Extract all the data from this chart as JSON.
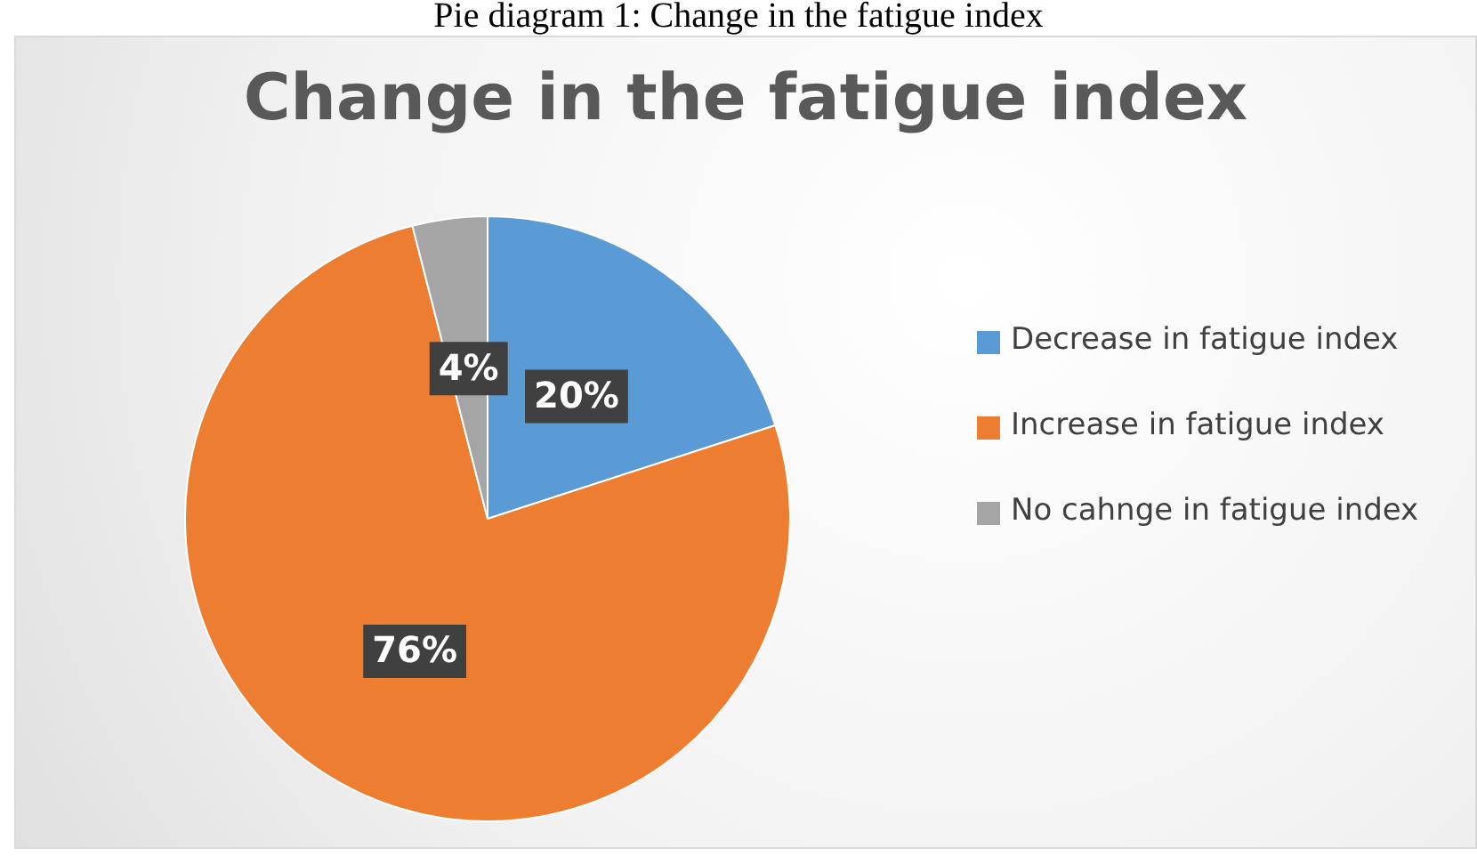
{
  "chart_data": {
    "type": "pie",
    "title": "Change in the fatigue index",
    "annotations": [
      "Pie diagram 1: Change in the fatigue index"
    ],
    "categories": [
      "Decrease in fatigue index",
      "Increase in fatigue index",
      "No cahnge in fatigue index"
    ],
    "values": [
      20,
      76,
      4
    ],
    "colors": [
      "#5b9bd5",
      "#ed7d31",
      "#a5a5a5"
    ],
    "value_labels": [
      "20%",
      "76%",
      "4%"
    ],
    "legend": "right"
  }
}
